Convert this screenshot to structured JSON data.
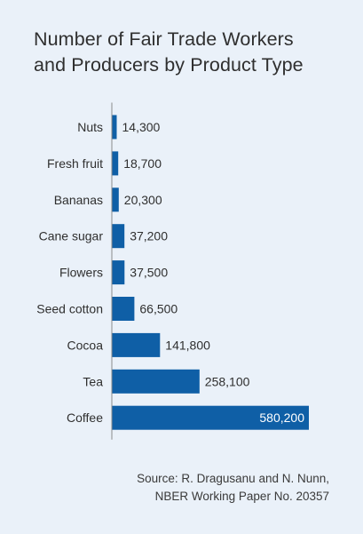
{
  "chart_data": {
    "type": "bar",
    "orientation": "horizontal",
    "title_lines": [
      "Number of Fair Trade Workers",
      "and Producers by Product Type"
    ],
    "categories": [
      "Nuts",
      "Fresh fruit",
      "Bananas",
      "Cane sugar",
      "Flowers",
      "Seed cotton",
      "Cocoa",
      "Tea",
      "Coffee"
    ],
    "values": [
      14300,
      18700,
      20300,
      37200,
      37500,
      66500,
      141800,
      258100,
      580200
    ],
    "value_labels": [
      "14,300",
      "18,700",
      "20,300",
      "37,200",
      "37,500",
      "66,500",
      "141,800",
      "258,100",
      "580,200"
    ],
    "xlim": [
      0,
      580200
    ],
    "grid": false,
    "legend": "none",
    "bar_color": "#0f5fa6",
    "axis_color": "#8a8a8a",
    "label_color": "#2f2f2f"
  },
  "source": {
    "line1": "Source: R. Dragusanu and N. Nunn,",
    "line2": "NBER Working Paper No. 20357"
  },
  "colors": {
    "background": "#eaf1f9",
    "text": "#2f2f2f",
    "inside_label": "#ffffff"
  }
}
